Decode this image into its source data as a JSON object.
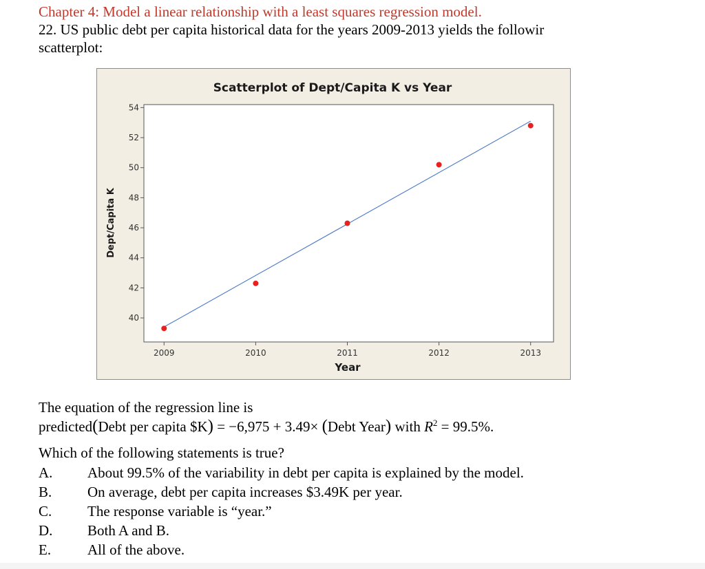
{
  "header": {
    "chapter_title": "Chapter 4:  Model a linear relationship with a least squares regression model.",
    "question_line1": "22.  US public debt per capita historical data for the years 2009-2013 yields the followir",
    "question_line2": "scatterplot:"
  },
  "chart_data": {
    "type": "scatter",
    "title": "Scatterplot of Dept/Capita K vs Year",
    "xlabel": "Year",
    "ylabel": "Dept/Capita K",
    "x_ticks": [
      "2009",
      "2010",
      "2011",
      "2012",
      "2013"
    ],
    "y_ticks": [
      "40",
      "42",
      "44",
      "46",
      "48",
      "50",
      "52",
      "54"
    ],
    "xlim": [
      2008.78,
      2013.25
    ],
    "ylim": [
      38.4,
      54.2
    ],
    "grid": false,
    "points": [
      {
        "x": 2009,
        "y": 39.3
      },
      {
        "x": 2010,
        "y": 42.3
      },
      {
        "x": 2011,
        "y": 46.3
      },
      {
        "x": 2012,
        "y": 50.2
      },
      {
        "x": 2013,
        "y": 52.8
      }
    ],
    "fit_line": {
      "x_start": 2009,
      "y_start": 39.4,
      "x_end": 2013,
      "y_end": 53.1
    },
    "colors": {
      "background": "#f3eee4",
      "plot_area": "#ffffff",
      "point": "#e8201e",
      "fit_line": "#4a78c8"
    }
  },
  "equation": {
    "intro": "The equation of the regression line is",
    "prefix": "predicted",
    "lhs": "Debt per capita $K",
    "equals": " = −6,975 + 3.49× ",
    "rhs": "Debt Year",
    "with_text": " with ",
    "r_symbol": "R",
    "r_exponent": "2",
    "r_value": " = 99.5%."
  },
  "question": {
    "prompt": "Which of the following statements is true?",
    "options": [
      {
        "letter": "A.",
        "text": "About 99.5% of the variability in debt per capita is explained by the model."
      },
      {
        "letter": "B.",
        "text": "On average, debt per capita increases $3.49K per year."
      },
      {
        "letter": "C.",
        "text": "The response variable is “year.”"
      },
      {
        "letter": "D.",
        "text": "Both A and B."
      },
      {
        "letter": "E.",
        "text": "All of the above."
      }
    ]
  }
}
